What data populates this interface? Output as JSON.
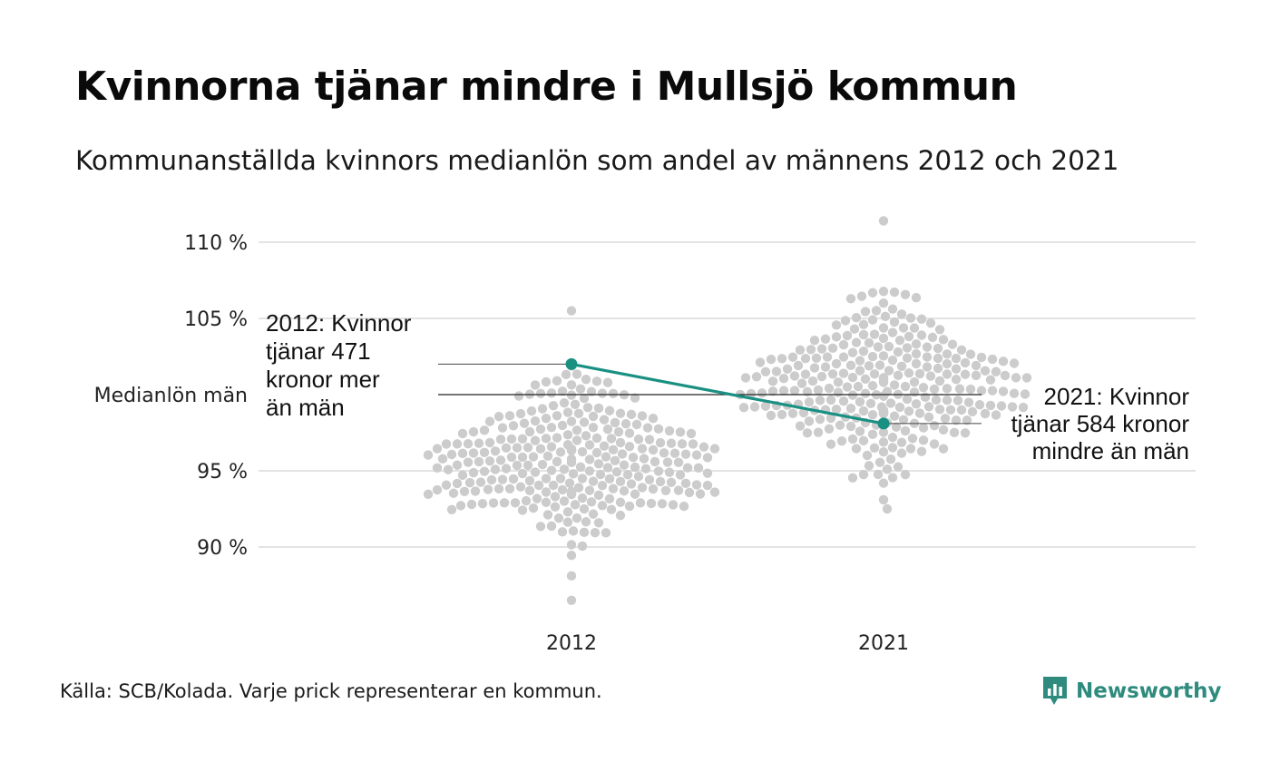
{
  "title": "Kvinnorna tjänar mindre i Mullsjö kommun",
  "subtitle": "Kommunanställda kvinnors medianlön som andel av männens 2012 och 2021",
  "source": "Källa: SCB/Kolada. Varje prick representerar en kommun.",
  "brand": {
    "name": "Newsworthy",
    "icon": "newsworthy-logo-icon",
    "color": "#2e8b7e"
  },
  "colors": {
    "dots": "#cccccc",
    "highlight": "#1a9083",
    "grid": "#e3e3e3",
    "reference": "#222222"
  },
  "chart_data": {
    "type": "scatter",
    "subtype": "beeswarm",
    "title": "Kvinnorna tjänar mindre i Mullsjö kommun",
    "subtitle": "Kommunanställda kvinnors medianlön som andel av männens 2012 och 2021",
    "categories": [
      "2012",
      "2021"
    ],
    "ylim": [
      86.5,
      111.5
    ],
    "yticks": [
      {
        "value": 110,
        "label": "110 %"
      },
      {
        "value": 105,
        "label": "105 %"
      },
      {
        "value": 95,
        "label": "95 %"
      },
      {
        "value": 90,
        "label": "90 %"
      }
    ],
    "reference_line": {
      "value": 100,
      "label": "Medianlön män"
    },
    "grid": true,
    "distributions": [
      {
        "category": "2012",
        "min": 86.5,
        "max": 105.5,
        "center": 95.5,
        "spread": 2.6,
        "count": 290
      },
      {
        "category": "2021",
        "min": 92.5,
        "max": 111.4,
        "center": 100.5,
        "spread": 2.8,
        "count": 290
      }
    ],
    "highlight": {
      "name": "Mullsjö",
      "values": [
        {
          "x": "2012",
          "y": 102.0
        },
        {
          "x": "2021",
          "y": 98.1
        }
      ]
    },
    "annotations": [
      {
        "x": "2012",
        "lines": [
          "2012: Kvinnor",
          "tjänar 471",
          "kronor mer",
          "än män"
        ]
      },
      {
        "x": "2021",
        "lines": [
          "2021: Kvinnor",
          "tjänar 584 kronor",
          "mindre än män"
        ]
      }
    ]
  }
}
